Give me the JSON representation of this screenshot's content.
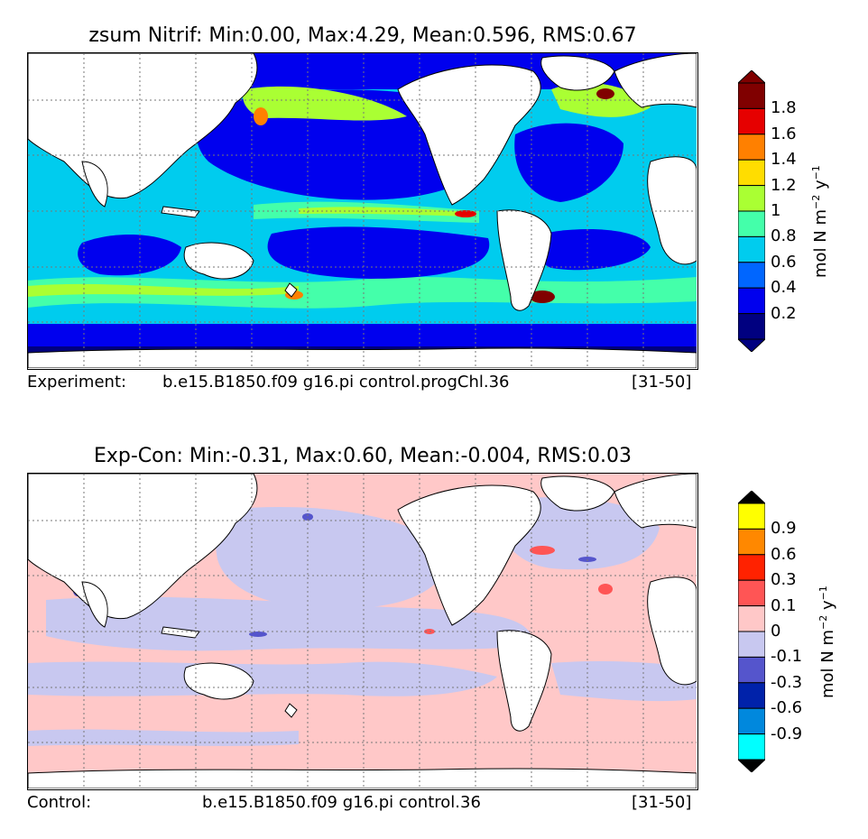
{
  "top_panel": {
    "title": "zsum Nitrif: Min:0.00, Max:4.29, Mean:0.596, RMS:0.67",
    "caption_left": "Experiment:",
    "caption_mid": "b.e15.B1850.f09 g16.pi control.progChl.36",
    "caption_right": "[31-50]",
    "colorbar": {
      "label_main": "mol N m",
      "label_exp1": "−2",
      "label_y": " y",
      "label_exp2": "−1",
      "ticks": [
        "1.8",
        "1.6",
        "1.4",
        "1.2",
        "1",
        "0.8",
        "0.6",
        "0.4",
        "0.2"
      ],
      "colors": [
        "#800000",
        "#e60000",
        "#ff8000",
        "#ffdd00",
        "#aaff33",
        "#44ffaa",
        "#00ccee",
        "#0066ff",
        "#0000ee",
        "#000080"
      ],
      "over_color": "#800000",
      "under_color": "#000080"
    }
  },
  "bottom_panel": {
    "title": "Exp-Con: Min:-0.31, Max:0.60, Mean:-0.004, RMS:0.03",
    "caption_left": "Control:",
    "caption_mid": "b.e15.B1850.f09 g16.pi control.36",
    "caption_right": "[31-50]",
    "colorbar": {
      "label_main": "mol N m",
      "label_exp1": "−2",
      "label_y": " y",
      "label_exp2": "−1",
      "ticks": [
        "0.9",
        "0.6",
        "0.3",
        "0.1",
        "0",
        "-0.1",
        "-0.3",
        "-0.6",
        "-0.9"
      ],
      "colors": [
        "#ffff00",
        "#ff8800",
        "#ff2200",
        "#ff5555",
        "#ffc8c8",
        "#c8c8f0",
        "#5555cc",
        "#0022aa",
        "#0088dd",
        "#00ffff"
      ],
      "over_color": "#000000",
      "under_color": "#000000"
    }
  },
  "colors": {
    "land": "#ffffff",
    "coast": "#000000",
    "grid": "#777777"
  }
}
